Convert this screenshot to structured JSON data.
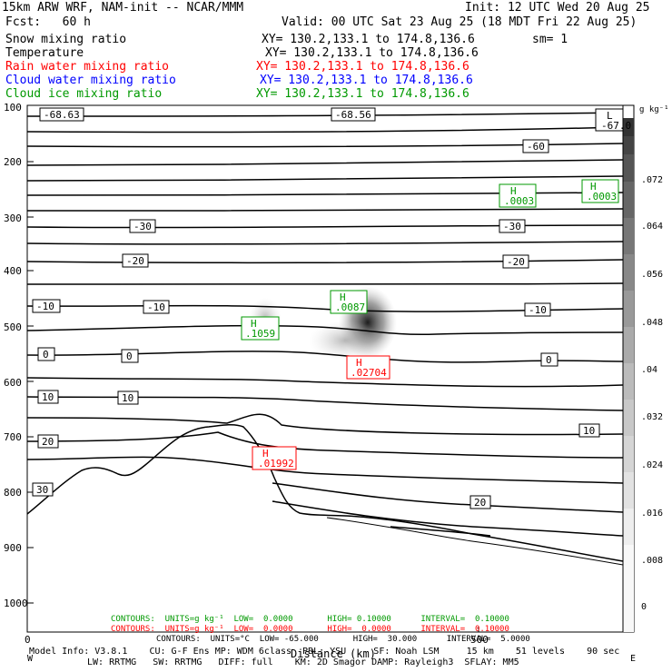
{
  "header": {
    "title": "15km ARW WRF, NAM-init -- NCAR/MMM",
    "init": "Init: 12 UTC Wed 20 Aug 25",
    "fcst": "Fcst:   60 h",
    "valid": "Valid: 00 UTC Sat 23 Aug 25 (18 MDT Fri 22 Aug 25)"
  },
  "fields": [
    {
      "label": "Snow mixing ratio",
      "xy": "XY= 130.2,133.1 to 174.8,136.6",
      "extra": "sm= 1",
      "color": "#000000"
    },
    {
      "label": "Temperature",
      "xy": "XY= 130.2,133.1 to 174.8,136.6",
      "extra": "",
      "color": "#000000"
    },
    {
      "label": "Rain water mixing ratio",
      "xy": "XY= 130.2,133.1 to 174.8,136.6",
      "extra": "",
      "color": "#ff0000"
    },
    {
      "label": "Cloud water mixing ratio",
      "xy": "XY= 130.2,133.1 to 174.8,136.6",
      "extra": "",
      "color": "#0000ff"
    },
    {
      "label": "Cloud ice mixing ratio",
      "xy": "XY= 130.2,133.1 to 174.8,136.6",
      "extra": "",
      "color": "#009900"
    }
  ],
  "footer": {
    "contours_green": "CONTOURS:  UNITS=g kg⁻¹  LOW=  0.0000       HIGH= 0.10000      INTERVAL=  0.10000",
    "contours_red": "CONTOURS:  UNITS=g kg⁻¹  LOW=  0.0000       HIGH=  0.0000      INTERVAL=  0.10000",
    "contours_temp": "CONTOURS:  UNITS=°C  LOW= -65.000       HIGH=  30.000      INTERVAL=  5.0000",
    "model_info_1": "Model Info: V3.8.1    CU: G-F Ens MP: WDM 6class  PBL: YSU     SF: Noah LSM     15 km    51 levels    90 sec",
    "model_info_2": "LW: RRTMG   SW: RRTMG   DIFF: full    KM: 2D Smagor DAMP: Rayleigh3  SFLAY: MM5",
    "xlabel": "Distance (km)",
    "bottom_left": "W",
    "bottom_right": "E",
    "x_ticks": [
      "0",
      "500"
    ]
  },
  "colors": {
    "snow_shade": "#777777",
    "terrain": "#000000",
    "isotherm": "#000000"
  },
  "chart_data": {
    "type": "cross-section",
    "y_ticks": [
      "100",
      "200",
      "300",
      "400",
      "500",
      "600",
      "700",
      "800",
      "900",
      "1000"
    ],
    "colorbar": {
      "units": "g kg⁻¹",
      "ticks": [
        "0",
        ".008",
        ".016",
        ".024",
        ".032",
        ".04",
        ".048",
        ".056",
        ".064",
        ".072"
      ]
    },
    "isotherms": [
      {
        "value": -60,
        "labels": [
          "-60"
        ]
      },
      {
        "value": -30,
        "labels": [
          "-30",
          "-30"
        ]
      },
      {
        "value": -20,
        "labels": [
          "-20",
          "-20"
        ]
      },
      {
        "value": -10,
        "labels": [
          "-10",
          "-10",
          "-10"
        ]
      },
      {
        "value": 0,
        "labels": [
          "0",
          "0",
          "0"
        ]
      },
      {
        "value": 10,
        "labels": [
          "10",
          "10",
          "10"
        ]
      },
      {
        "value": 20,
        "labels": [
          "20",
          "20"
        ]
      },
      {
        "value": 30,
        "labels": [
          "30"
        ]
      }
    ],
    "top_labels": [
      "-68.63",
      "-68.56",
      "-67.0"
    ],
    "extrema": [
      {
        "field": "cloud ice",
        "mark": "H",
        "value": ".0003"
      },
      {
        "field": "cloud ice",
        "mark": "H",
        "value": ".0003"
      },
      {
        "field": "cloud ice",
        "mark": "H",
        "value": ".0087"
      },
      {
        "field": "cloud ice",
        "mark": "H",
        "value": ".1059"
      },
      {
        "field": "rain water",
        "mark": "H",
        "value": ".02704"
      },
      {
        "field": "rain water",
        "mark": "H",
        "value": ".01992"
      }
    ],
    "top_corner_mark": "L"
  }
}
